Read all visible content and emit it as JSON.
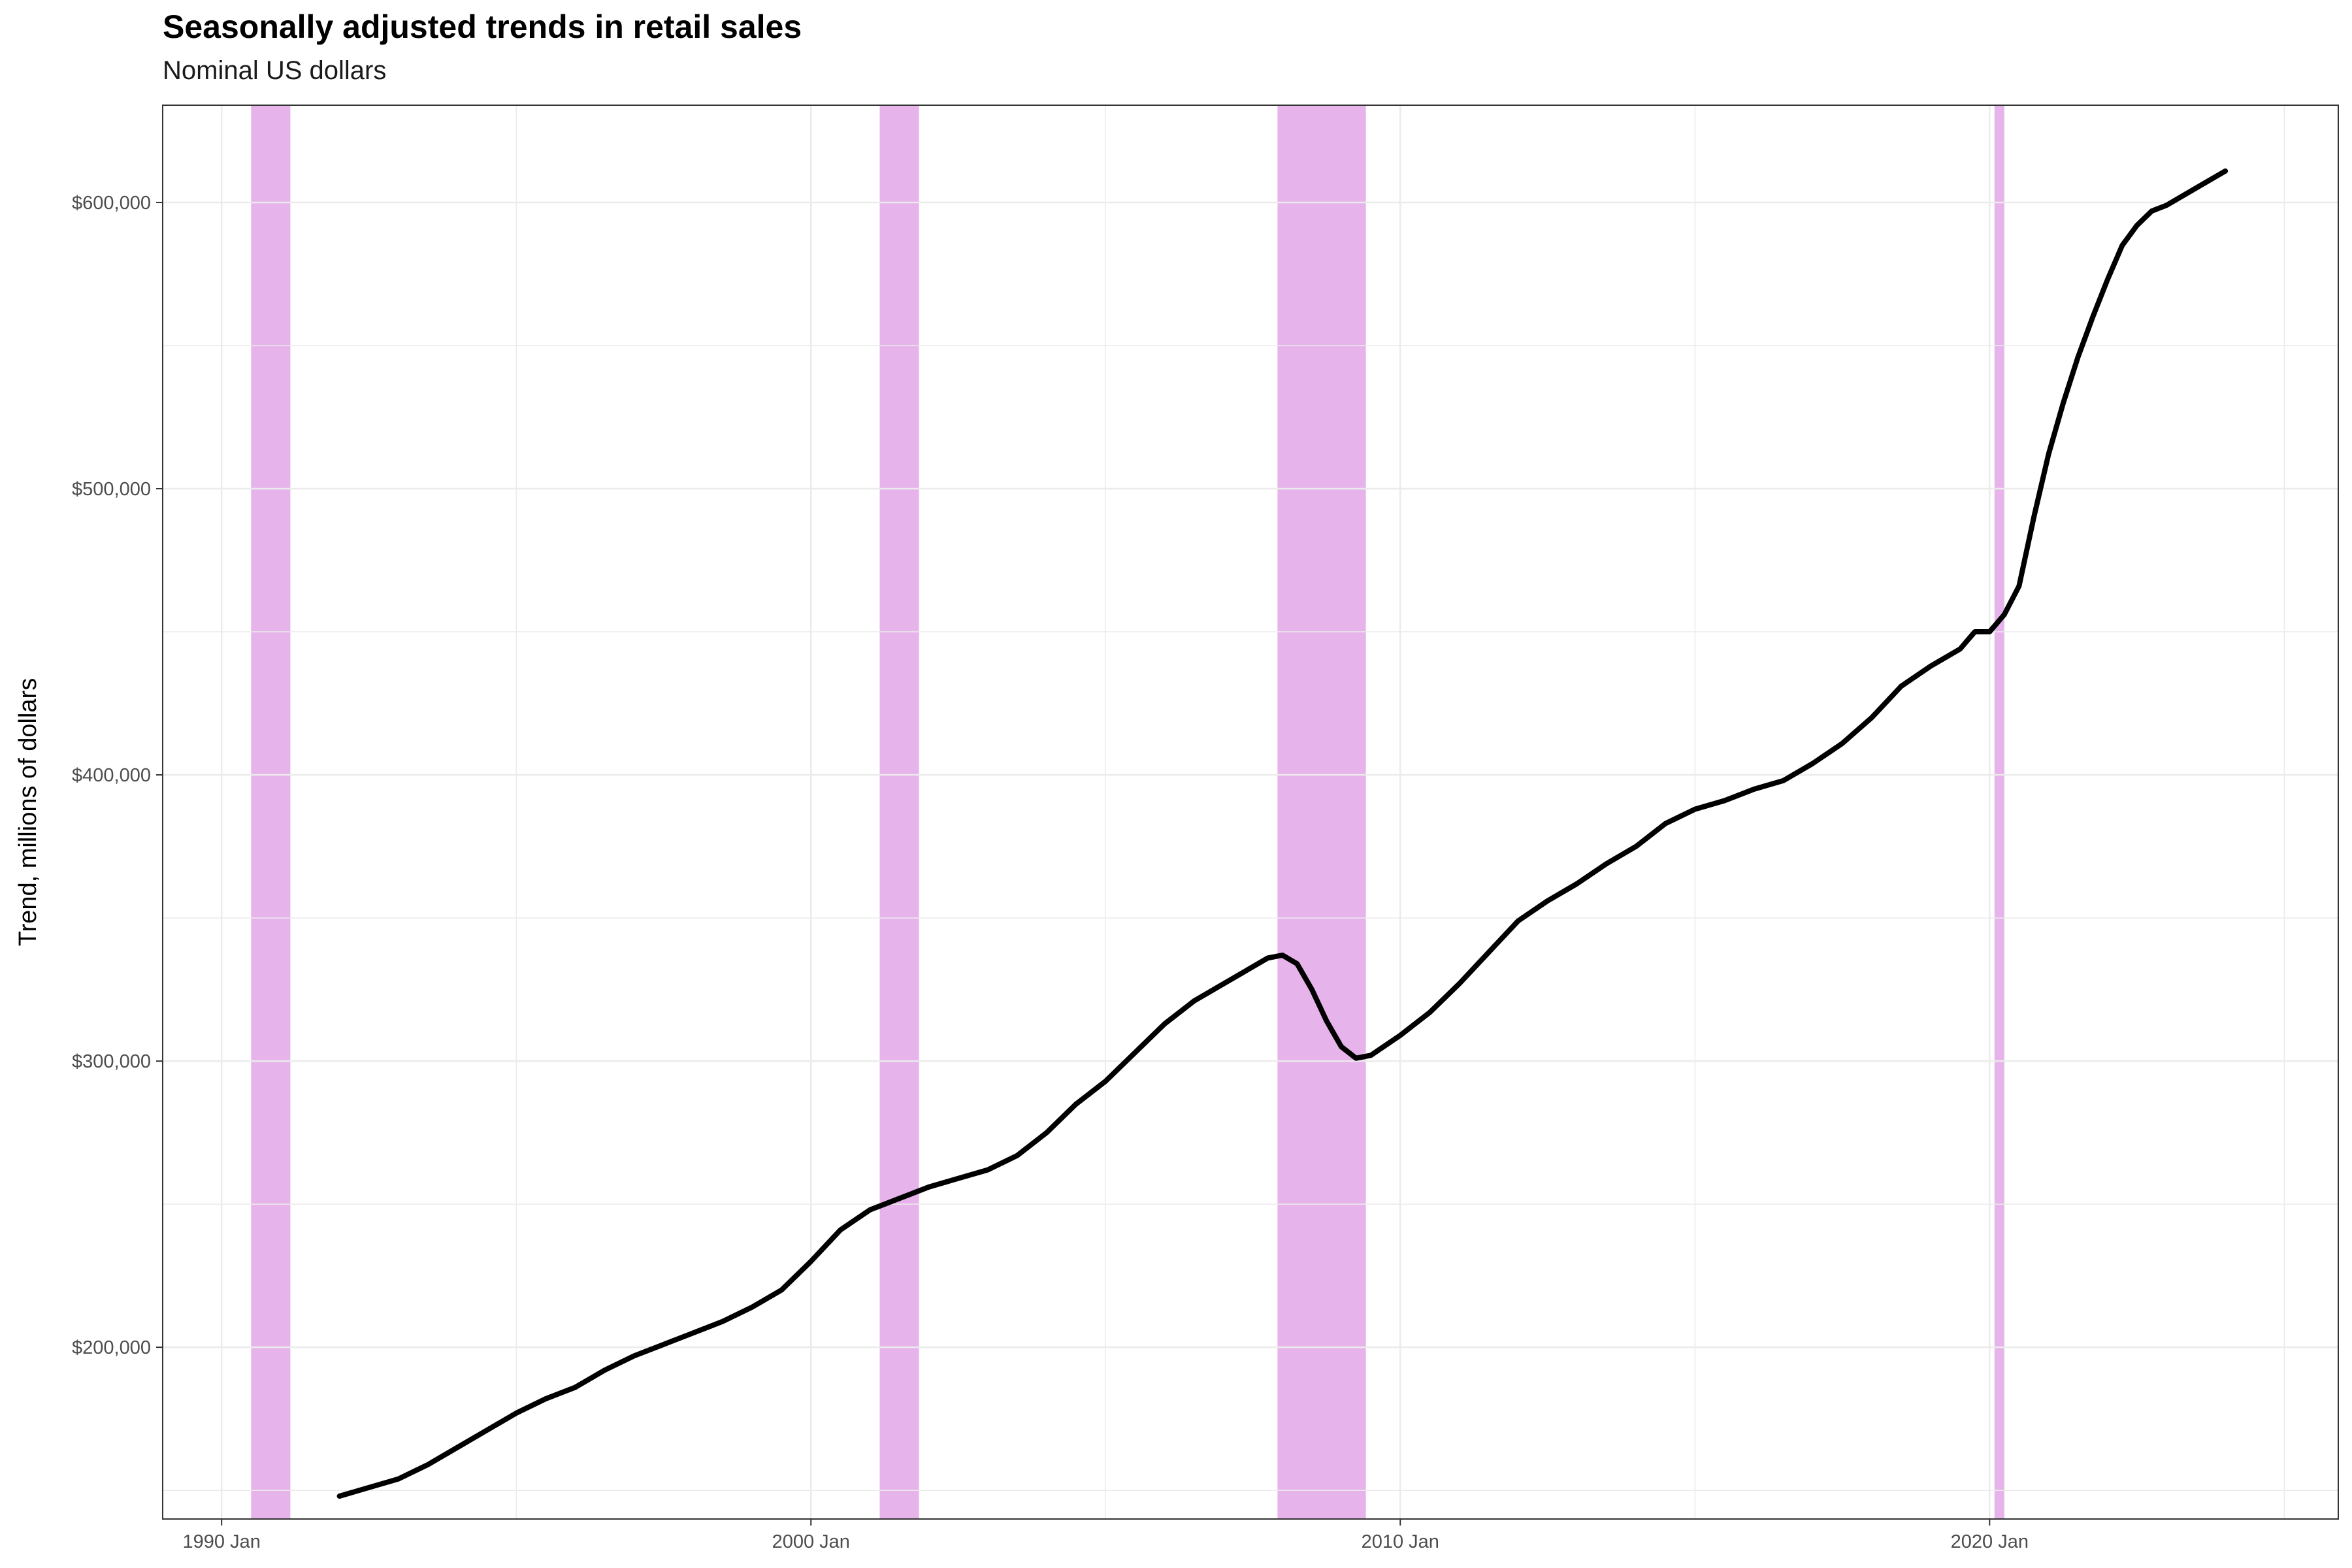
{
  "chart_data": {
    "type": "line",
    "title": "Seasonally adjusted trends in retail sales",
    "subtitle": "Nominal US dollars",
    "xlabel": "",
    "ylabel": "Trend, millions of dollars",
    "xlim": [
      "1989-01",
      "2025-12"
    ],
    "ylim": [
      140000,
      634000
    ],
    "x_ticks": [
      {
        "value": "1990-01",
        "label": "1990 Jan"
      },
      {
        "value": "2000-01",
        "label": "2000 Jan"
      },
      {
        "value": "2010-01",
        "label": "2010 Jan"
      },
      {
        "value": "2020-01",
        "label": "2020 Jan"
      }
    ],
    "y_ticks": [
      {
        "value": 200000,
        "label": "$200,000"
      },
      {
        "value": 300000,
        "label": "$300,000"
      },
      {
        "value": 400000,
        "label": "$400,000"
      },
      {
        "value": 500000,
        "label": "$500,000"
      },
      {
        "value": 600000,
        "label": "$600,000"
      }
    ],
    "grid": true,
    "recession_color": "#DA8BE0",
    "line_color": "#000000",
    "recessions": [
      {
        "start": "1990-07",
        "end": "1991-03"
      },
      {
        "start": "2001-03",
        "end": "2001-11"
      },
      {
        "start": "2007-12",
        "end": "2009-06"
      },
      {
        "start": "2020-02",
        "end": "2020-04"
      }
    ],
    "series": [
      {
        "x": [
          "1992-01",
          "1992-07",
          "1993-01",
          "1993-07",
          "1994-01",
          "1994-07",
          "1995-01",
          "1995-07",
          "1996-01",
          "1996-07",
          "1997-01",
          "1997-07",
          "1998-01",
          "1998-07",
          "1999-01",
          "1999-07",
          "2000-01",
          "2000-07",
          "2001-01",
          "2001-07",
          "2002-01",
          "2002-07",
          "2003-01",
          "2003-07",
          "2004-01",
          "2004-07",
          "2005-01",
          "2005-07",
          "2006-01",
          "2006-07",
          "2007-01",
          "2007-07",
          "2007-10",
          "2008-01",
          "2008-04",
          "2008-07",
          "2008-10",
          "2009-01",
          "2009-04",
          "2009-07",
          "2010-01",
          "2010-07",
          "2011-01",
          "2011-07",
          "2012-01",
          "2012-07",
          "2013-01",
          "2013-07",
          "2014-01",
          "2014-07",
          "2015-01",
          "2015-07",
          "2016-01",
          "2016-07",
          "2017-01",
          "2017-07",
          "2018-01",
          "2018-07",
          "2019-01",
          "2019-07",
          "2019-10",
          "2020-01",
          "2020-04",
          "2020-07",
          "2020-10",
          "2021-01",
          "2021-04",
          "2021-07",
          "2021-10",
          "2022-01",
          "2022-04",
          "2022-07",
          "2022-10",
          "2023-01",
          "2023-07",
          "2024-01"
        ],
        "values": [
          148000,
          151000,
          154000,
          159000,
          165000,
          171000,
          177000,
          182000,
          186000,
          192000,
          197000,
          201000,
          205000,
          209000,
          214000,
          220000,
          230000,
          241000,
          248000,
          252000,
          256000,
          259000,
          262000,
          267000,
          275000,
          285000,
          293000,
          303000,
          313000,
          321000,
          327000,
          333000,
          336000,
          337000,
          334000,
          325000,
          314000,
          305000,
          301000,
          302000,
          309000,
          317000,
          327000,
          338000,
          349000,
          356000,
          362000,
          369000,
          375000,
          383000,
          388000,
          391000,
          395000,
          398000,
          404000,
          411000,
          420000,
          431000,
          438000,
          444000,
          450000,
          450000,
          456000,
          466000,
          490000,
          512000,
          530000,
          546000,
          560000,
          573000,
          585000,
          592000,
          597000,
          599000,
          605000,
          611000
        ]
      }
    ]
  }
}
